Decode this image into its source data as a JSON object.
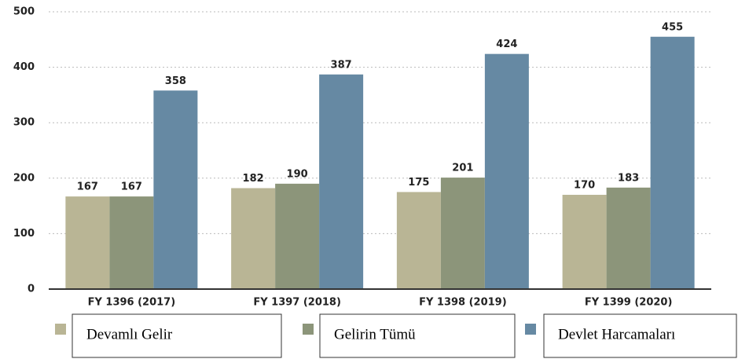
{
  "chart_data": {
    "type": "bar",
    "categories": [
      "FY 1396 (2017)",
      "FY 1397 (2018)",
      "FY 1398 (2019)",
      "FY 1399 (2020)"
    ],
    "series": [
      {
        "name": "Devamlı Gelir",
        "color": "#b9b595",
        "values": [
          167,
          182,
          175,
          170
        ]
      },
      {
        "name": "Gelirin Tümü",
        "color": "#8c957a",
        "values": [
          167,
          190,
          201,
          183
        ]
      },
      {
        "name": "Devlet Harcamaları",
        "color": "#6689a3",
        "values": [
          358,
          387,
          424,
          455
        ]
      }
    ],
    "ylim": [
      0,
      500
    ],
    "yticks": [
      0,
      100,
      200,
      300,
      400,
      500
    ],
    "grid": true,
    "legend": "bottom"
  }
}
